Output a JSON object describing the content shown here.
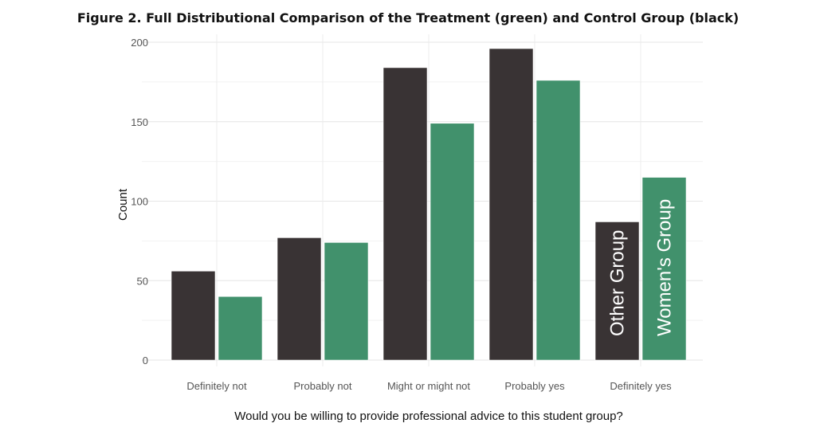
{
  "chart_data": {
    "type": "bar",
    "title": "Figure 2. Full Distributional Comparison of the Treatment (green) and Control Group (black)",
    "xlabel": "Would you be willing to provide professional advice to this student group?",
    "ylabel": "Count",
    "ylim": [
      0,
      200
    ],
    "yticks": [
      0,
      50,
      100,
      150,
      200
    ],
    "grid": true,
    "categories": [
      "Definitely not",
      "Probably not",
      "Might or might not",
      "Probably yes",
      "Definitely yes"
    ],
    "series": [
      {
        "name": "Other Group",
        "color": "#393334",
        "values": [
          56,
          77,
          184,
          196,
          87
        ]
      },
      {
        "name": "Women's Group",
        "color": "#41916c",
        "values": [
          40,
          74,
          149,
          176,
          115
        ]
      }
    ],
    "legend": "inline labels inside last category bars"
  }
}
